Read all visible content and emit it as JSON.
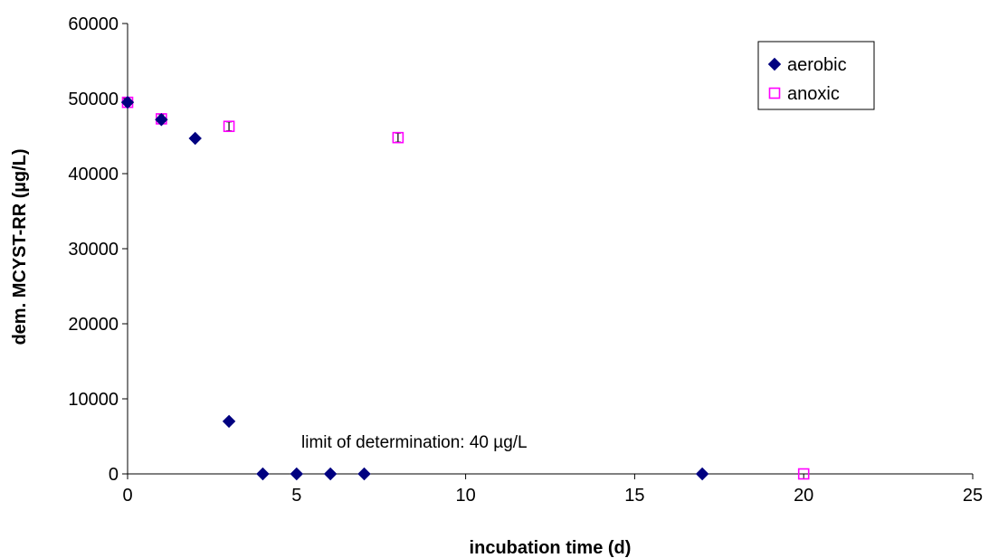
{
  "chart_data": {
    "type": "scatter",
    "title": "",
    "xlabel": "incubation time (d)",
    "ylabel": "dem. MCYST-RR (µg/L)",
    "xlim": [
      0,
      25
    ],
    "ylim": [
      0,
      60000
    ],
    "x_ticks": [
      0,
      5,
      10,
      15,
      20,
      25
    ],
    "y_ticks": [
      0,
      10000,
      20000,
      30000,
      40000,
      50000,
      60000
    ],
    "grid": false,
    "legend_position": "top-right",
    "annotation": "limit of determination: 40 µg/L",
    "series": [
      {
        "name": "aerobic",
        "marker": "diamond",
        "color": "#000080",
        "points": [
          {
            "x": 0,
            "y": 49500
          },
          {
            "x": 1,
            "y": 47200
          },
          {
            "x": 2,
            "y": 44700
          },
          {
            "x": 3,
            "y": 7000
          },
          {
            "x": 4,
            "y": 0
          },
          {
            "x": 5,
            "y": 0
          },
          {
            "x": 6,
            "y": 0
          },
          {
            "x": 7,
            "y": 0
          },
          {
            "x": 17,
            "y": 0
          }
        ]
      },
      {
        "name": "anoxic",
        "marker": "square-open",
        "color": "#ff00ff",
        "points": [
          {
            "x": 0,
            "y": 49500
          },
          {
            "x": 1,
            "y": 47300
          },
          {
            "x": 3,
            "y": 46300
          },
          {
            "x": 8,
            "y": 44800
          },
          {
            "x": 20,
            "y": 0
          }
        ]
      }
    ]
  }
}
